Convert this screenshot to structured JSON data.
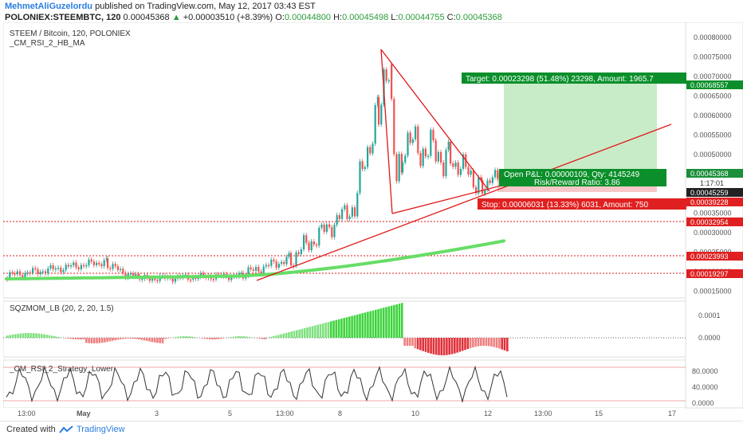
{
  "header": {
    "author": "MehmetAliGuzelordu",
    "published": "published on TradingView.com, May 12, 2017 03:43 EST",
    "symbol": "POLONIEX:STEEMBTC, 120",
    "last": "0.00045368",
    "change": "+0.00003510 (+8.39%)",
    "o_label": "O:",
    "o": "0.00044800",
    "h_label": "H:",
    "h": "0.00045498",
    "l_label": "L:",
    "l": "0.00044755",
    "c_label": "C:",
    "c": "0.00045368"
  },
  "main_pane": {
    "title": "STEEM / Bitcoin, 120, POLONIEX",
    "indicator": "_CM_RSI_2_HB_MA",
    "price_ticks": [
      "0.00080000",
      "0.00075000",
      "0.00070000",
      "0.00065000",
      "0.00060000",
      "0.00055000",
      "0.00050000",
      "0.00045000",
      "0.00040000",
      "0.00035000",
      "0.00030000",
      "0.00025000",
      "0.00020000",
      "0.00015000"
    ],
    "tags": {
      "target_price": "0.00068557",
      "current": "0.00045368",
      "countdown": "1:17:01",
      "entry": "0.00045259",
      "stop": "0.00039228",
      "level1": "0.00032954",
      "level2": "0.00023993",
      "level3": "0.00019297"
    },
    "target_label": "Target: 0.00023298 (51.48%) 23298, Amount: 1965.7",
    "pnl_label": "Open P&L: 0.00000109, Qty: 4145249",
    "rr_label": "Risk/Reward Ratio: 3.86",
    "stop_label": "Stop: 0.00006031 (13.33%) 6031, Amount: 750"
  },
  "sqz_pane": {
    "title": "SQZMOM_LB (20, 2, 20, 1.5)",
    "ticks": [
      "0.0001",
      "0.0000"
    ]
  },
  "rsi_pane": {
    "title": "_CM_RSI_2_Strategy_Lower",
    "ticks": [
      "80.0000",
      "40.0000",
      "0.0000"
    ]
  },
  "time_axis": [
    "13:00",
    "May",
    "3",
    "5",
    "13:00",
    "8",
    "10",
    "12",
    "13:00",
    "15",
    "17"
  ],
  "footer": {
    "created": "Created with",
    "brand": "TradingView"
  },
  "colors": {
    "up": "#26a69a",
    "down": "#ef5350",
    "ma": "#66dd66",
    "trendline": "#e01818",
    "target_zone": "#c8ebc8",
    "stop_zone": "#f7c8c8",
    "label_green": "#0a8f2a",
    "label_red": "#e02020"
  }
}
